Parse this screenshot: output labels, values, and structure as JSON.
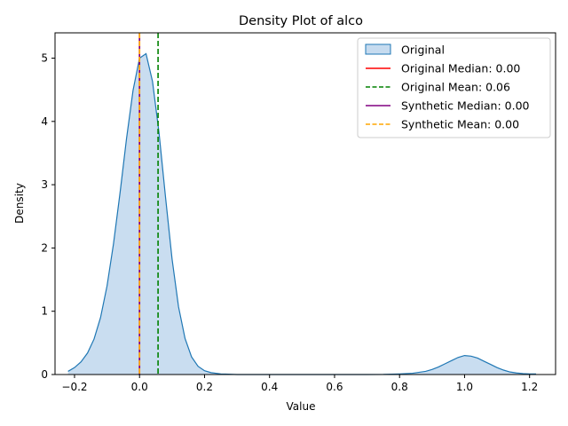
{
  "chart_data": {
    "type": "area",
    "title": "Density Plot of alco",
    "xlabel": "Value",
    "ylabel": "Density",
    "xlim": [
      -0.26,
      1.28
    ],
    "ylim": [
      0,
      5.4
    ],
    "x_ticks": [
      -0.2,
      0.0,
      0.2,
      0.4,
      0.6,
      0.8,
      1.0,
      1.2
    ],
    "x_tick_labels": [
      "−0.2",
      "0.0",
      "0.2",
      "0.4",
      "0.6",
      "0.8",
      "1.0",
      "1.2"
    ],
    "y_ticks": [
      0,
      1,
      2,
      3,
      4,
      5
    ],
    "y_tick_labels": [
      "0",
      "1",
      "2",
      "3",
      "4",
      "5"
    ],
    "grid": false,
    "legend_position": "top-right",
    "density": {
      "name": "Original",
      "x": [
        -0.22,
        -0.2,
        -0.18,
        -0.16,
        -0.14,
        -0.12,
        -0.1,
        -0.08,
        -0.06,
        -0.04,
        -0.02,
        0.0,
        0.02,
        0.04,
        0.06,
        0.08,
        0.1,
        0.12,
        0.14,
        0.16,
        0.18,
        0.2,
        0.22,
        0.25,
        0.3,
        0.4,
        0.5,
        0.6,
        0.7,
        0.75,
        0.8,
        0.84,
        0.88,
        0.9,
        0.92,
        0.94,
        0.96,
        0.98,
        1.0,
        1.02,
        1.04,
        1.06,
        1.08,
        1.1,
        1.12,
        1.14,
        1.16,
        1.18,
        1.2,
        1.22
      ],
      "y": [
        0.05,
        0.11,
        0.2,
        0.34,
        0.56,
        0.9,
        1.4,
        2.07,
        2.87,
        3.73,
        4.49,
        5.0,
        5.07,
        4.63,
        3.82,
        2.8,
        1.83,
        1.07,
        0.57,
        0.28,
        0.13,
        0.06,
        0.03,
        0.01,
        0.0,
        0.0,
        0.0,
        0.0,
        0.0,
        0.002,
        0.01,
        0.02,
        0.05,
        0.08,
        0.12,
        0.17,
        0.22,
        0.27,
        0.3,
        0.29,
        0.26,
        0.21,
        0.16,
        0.11,
        0.07,
        0.04,
        0.025,
        0.015,
        0.01,
        0.01
      ],
      "color": "#1f77b4",
      "fill_color": "#c6dbef"
    },
    "reference_lines": [
      {
        "name": "Original Median",
        "value_label": "Original Median: 0.00",
        "x": 0.0,
        "color": "#ff0000",
        "style": "solid"
      },
      {
        "name": "Original Mean",
        "value_label": "Original Mean: 0.06",
        "x": 0.057,
        "color": "#008000",
        "style": "dashed"
      },
      {
        "name": "Synthetic Median",
        "value_label": "Synthetic Median: 0.00",
        "x": 0.0,
        "color": "#800080",
        "style": "solid"
      },
      {
        "name": "Synthetic Mean",
        "value_label": "Synthetic Mean: 0.00",
        "x": 0.0,
        "color": "#ffa500",
        "style": "dashed"
      }
    ],
    "legend": [
      {
        "label": "Original",
        "kind": "patch",
        "color": "#1f77b4",
        "fill": "#c6dbef"
      },
      {
        "label": "Original Median: 0.00",
        "kind": "line",
        "color": "#ff0000",
        "style": "solid"
      },
      {
        "label": "Original Mean: 0.06",
        "kind": "line",
        "color": "#008000",
        "style": "dashed"
      },
      {
        "label": "Synthetic Median: 0.00",
        "kind": "line",
        "color": "#800080",
        "style": "solid"
      },
      {
        "label": "Synthetic Mean: 0.00",
        "kind": "line",
        "color": "#ffa500",
        "style": "dashed"
      }
    ]
  }
}
